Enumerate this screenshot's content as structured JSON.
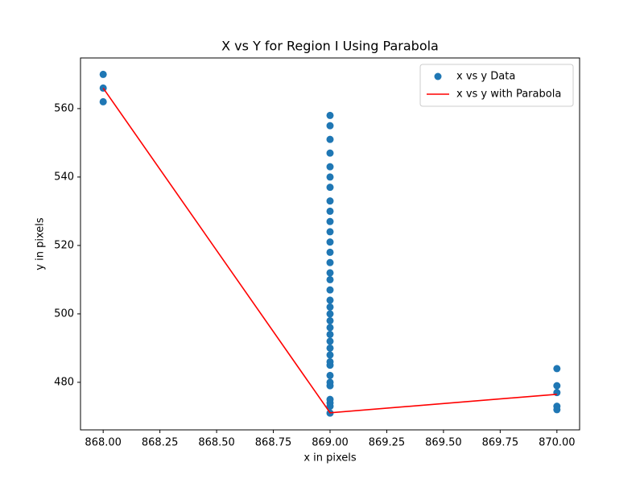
{
  "chart_data": {
    "type": "scatter",
    "title": "X vs Y for Region I Using Parabola",
    "xlabel": "x in pixels",
    "ylabel": "y in pixels",
    "xlim": [
      867.9,
      870.1
    ],
    "ylim": [
      466.1,
      574.8
    ],
    "xticks": [
      {
        "value": 868,
        "label": "868.00"
      },
      {
        "value": 868.25,
        "label": "868.25"
      },
      {
        "value": 868.5,
        "label": "868.50"
      },
      {
        "value": 868.75,
        "label": "868.75"
      },
      {
        "value": 869,
        "label": "869.00"
      },
      {
        "value": 869.25,
        "label": "869.25"
      },
      {
        "value": 869.5,
        "label": "869.50"
      },
      {
        "value": 869.75,
        "label": "869.75"
      },
      {
        "value": 870,
        "label": "870.00"
      }
    ],
    "yticks": [
      480,
      500,
      520,
      540,
      560
    ],
    "legend": "upper right",
    "series": [
      {
        "name": "x vs y Data",
        "type": "scatter",
        "color": "#1f77b4",
        "x": [
          868,
          868,
          868,
          869,
          869,
          869,
          869,
          869,
          869,
          869,
          869,
          869,
          869,
          869,
          869,
          869,
          869,
          869,
          869,
          869,
          869,
          869,
          869,
          869,
          869,
          869,
          869,
          869,
          869,
          869,
          869,
          869,
          869,
          869,
          869,
          869,
          869,
          869,
          870,
          870,
          870,
          870,
          870
        ],
        "values": [
          570,
          566,
          562,
          558,
          555,
          551,
          547,
          543,
          540,
          537,
          533,
          530,
          527,
          524,
          521,
          518,
          515,
          512,
          510,
          507,
          504,
          502,
          500,
          498,
          496,
          494,
          492,
          490,
          488,
          486,
          485,
          482,
          480,
          479,
          475,
          474,
          473,
          471,
          484,
          479,
          477,
          473,
          472
        ]
      },
      {
        "name": "x vs y with Parabola",
        "type": "line",
        "color": "#ff0000",
        "x": [
          868,
          869,
          870
        ],
        "values": [
          566,
          471.1,
          476.5
        ]
      }
    ]
  }
}
